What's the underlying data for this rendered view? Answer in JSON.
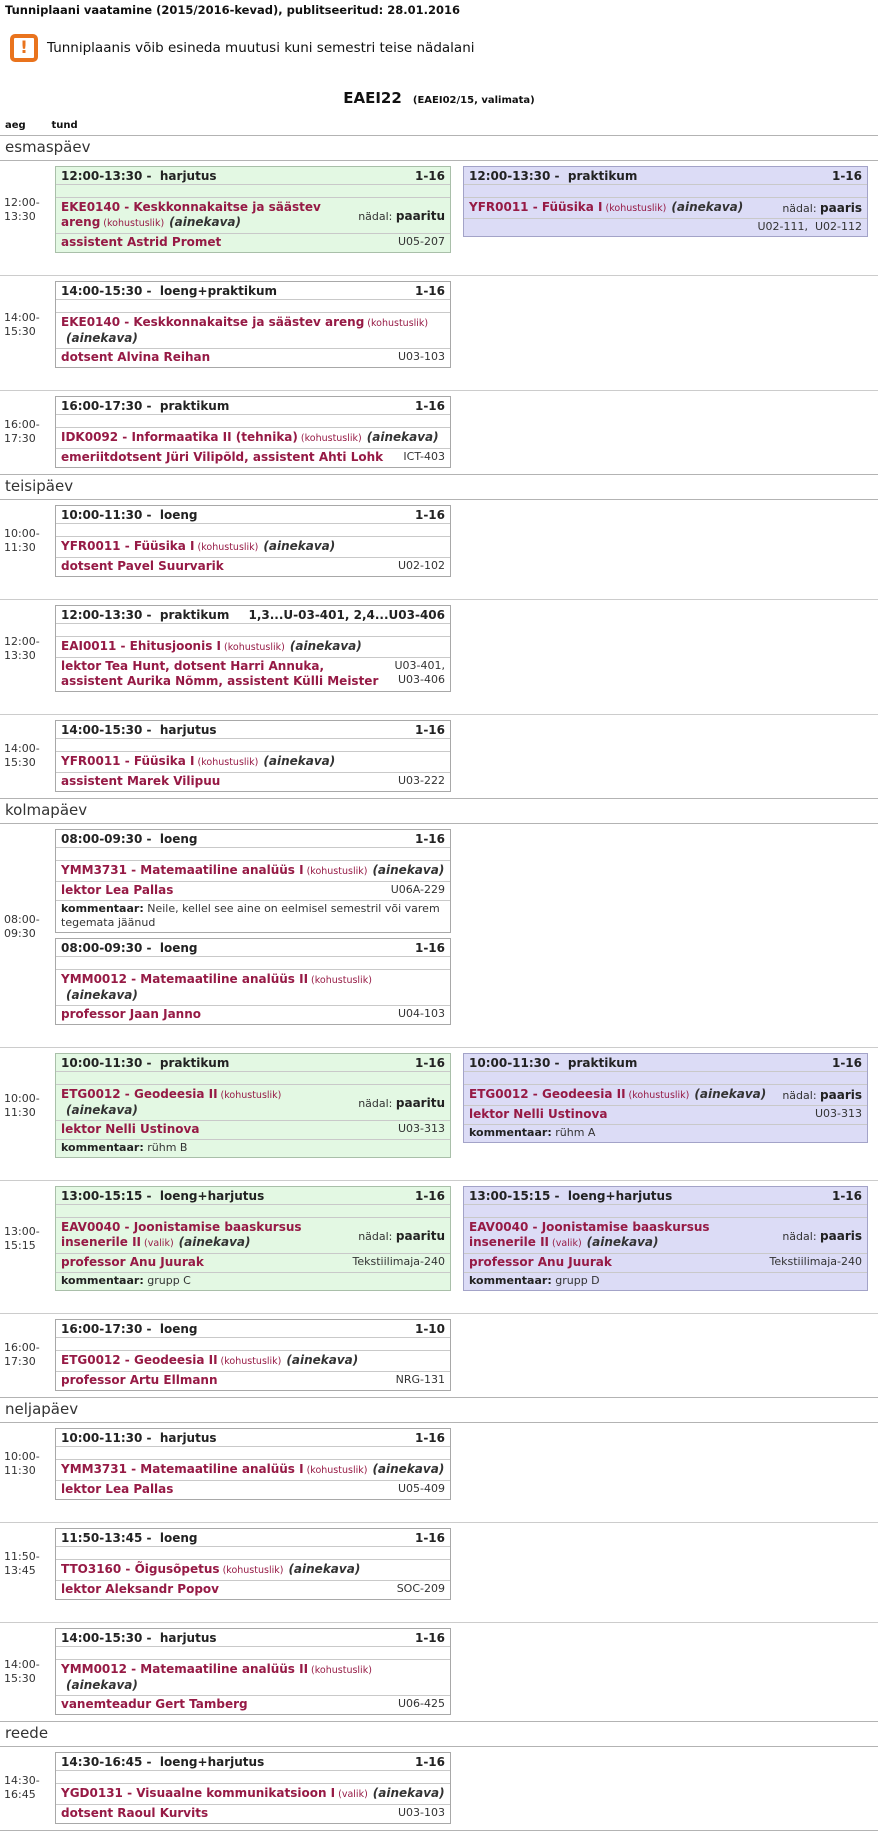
{
  "header": {
    "title": "Tunniplaani vaatamine (2015/2016-kevad), publitseeritud: 28.01.2016",
    "warning": "Tunniplaanis võib esineda muutusi kuni semestri teise nädalani",
    "group_title": "EAEI22",
    "group_subtitle": "(EAEI02/15, valimata)",
    "col_aeg": "aeg",
    "col_tund": "tund"
  },
  "labels": {
    "nadal": "nädal:",
    "kommentaar": "kommentaar:"
  },
  "colors": {
    "odd_week_bg": "#e3f8e3",
    "even_week_bg": "#dcdcf6",
    "course_maroon": "#961a45",
    "warning_orange": "#e9731d"
  },
  "days": [
    {
      "name": "esmaspäev",
      "rows": [
        {
          "time": [
            "12:00-",
            "13:30"
          ],
          "left": [
            {
              "variant": "odd",
              "title": "12:00-13:30 -  harjutus",
              "weeks": "1-16",
              "course": "EKE0140 - Keskkonnakaitse ja säästev areng",
              "requirement": "(kohustuslik)",
              "ainekava": "(ainekava)",
              "week_value": "paaritu",
              "teachers": "assistent Astrid Promet",
              "room": "U05-207"
            }
          ],
          "right": [
            {
              "variant": "even",
              "title": "12:00-13:30 -  praktikum",
              "weeks": "1-16",
              "course": "YFR0011 - Füüsika I",
              "requirement": "(kohustuslik)",
              "ainekava": "(ainekava)",
              "week_value": "paaris",
              "teachers": "",
              "room": "U02-111,  U02-112"
            }
          ]
        },
        {
          "time": [
            "14:00-",
            "15:30"
          ],
          "left": [
            {
              "variant": "plain",
              "title": "14:00-15:30 -  loeng+praktikum",
              "weeks": "1-16",
              "course": "EKE0140 - Keskkonnakaitse ja säästev areng",
              "requirement": "(kohustuslik)",
              "ainekava": "(ainekava)",
              "teachers": "dotsent Alvina Reihan",
              "room": "U03-103"
            }
          ],
          "right": []
        },
        {
          "time": [
            "16:00-",
            "17:30"
          ],
          "left": [
            {
              "variant": "plain",
              "title": "16:00-17:30 -  praktikum",
              "weeks": "1-16",
              "course": "IDK0092 - Informaatika II (tehnika)",
              "requirement": "(kohustuslik)",
              "ainekava": "(ainekava)",
              "teachers": "emeriitdotsent Jüri Vilipõld,  assistent Ahti Lohk",
              "room": "ICT-403"
            }
          ],
          "right": []
        }
      ]
    },
    {
      "name": "teisipäev",
      "rows": [
        {
          "time": [
            "10:00-",
            "11:30"
          ],
          "left": [
            {
              "variant": "plain",
              "title": "10:00-11:30 -  loeng",
              "weeks": "1-16",
              "course": "YFR0011 - Füüsika I",
              "requirement": "(kohustuslik)",
              "ainekava": "(ainekava)",
              "teachers": "dotsent Pavel Suurvarik",
              "room": "U02-102"
            }
          ],
          "right": []
        },
        {
          "time": [
            "12:00-",
            "13:30"
          ],
          "left": [
            {
              "variant": "plain",
              "title": "12:00-13:30 -  praktikum",
              "weeks": "1,3...U-03-401, 2,4...U03-406",
              "course": "EAI0011 - Ehitusjoonis I",
              "requirement": "(kohustuslik)",
              "ainekava": "(ainekava)",
              "teachers": "lektor Tea Hunt,  dotsent Harri Annuka, assistent Aurika Nõmm, assistent Külli Meister",
              "room": "U03-401, U03-406",
              "room_narrow": true
            }
          ],
          "right": []
        },
        {
          "time": [
            "14:00-",
            "15:30"
          ],
          "left": [
            {
              "variant": "plain",
              "title": "14:00-15:30 -  harjutus",
              "weeks": "1-16",
              "course": "YFR0011 - Füüsika I",
              "requirement": "(kohustuslik)",
              "ainekava": "(ainekava)",
              "teachers": "assistent Marek Vilipuu",
              "room": "U03-222"
            }
          ],
          "right": []
        }
      ]
    },
    {
      "name": "kolmapäev",
      "rows": [
        {
          "time": [
            "08:00-",
            "09:30"
          ],
          "left": [
            {
              "variant": "plain",
              "title": "08:00-09:30 -  loeng",
              "weeks": "1-16",
              "course": "YMM3731 - Matemaatiline analüüs I",
              "requirement": "(kohustuslik)",
              "ainekava": "(ainekava)",
              "teachers": "lektor Lea Pallas",
              "room": "U06A-229",
              "comment": "Neile, kellel see aine on eelmisel semestril või varem tegemata jäänud"
            },
            {
              "variant": "plain",
              "title": "08:00-09:30 -  loeng",
              "weeks": "1-16",
              "course": "YMM0012 - Matemaatiline analüüs II",
              "requirement": "(kohustuslik)",
              "ainekava": "(ainekava)",
              "teachers": "professor Jaan Janno",
              "room": "U04-103"
            }
          ],
          "right": []
        },
        {
          "time": [
            "10:00-",
            "11:30"
          ],
          "left": [
            {
              "variant": "odd",
              "title": "10:00-11:30 -  praktikum",
              "weeks": "1-16",
              "course": "ETG0012 - Geodeesia II",
              "requirement": "(kohustuslik)",
              "ainekava": "(ainekava)",
              "week_value": "paaritu",
              "teachers": "lektor Nelli Ustinova",
              "room": "U03-313",
              "comment": "rühm B"
            }
          ],
          "right": [
            {
              "variant": "even",
              "title": "10:00-11:30 -  praktikum",
              "weeks": "1-16",
              "course": "ETG0012 - Geodeesia II",
              "requirement": "(kohustuslik)",
              "ainekava": "(ainekava)",
              "week_value": "paaris",
              "teachers": "lektor Nelli Ustinova",
              "room": "U03-313",
              "comment": "rühm A"
            }
          ]
        },
        {
          "time": [
            "13:00-",
            "15:15"
          ],
          "left": [
            {
              "variant": "odd",
              "title": "13:00-15:15 -  loeng+harjutus",
              "weeks": "1-16",
              "course": "EAV0040 - Joonistamise baaskursus insenerile II",
              "requirement": "(valik)",
              "ainekava": "(ainekava)",
              "week_value": "paaritu",
              "teachers": "professor Anu Juurak",
              "room": "Tekstiilimaja-240",
              "comment": "grupp C"
            }
          ],
          "right": [
            {
              "variant": "even",
              "title": "13:00-15:15 -  loeng+harjutus",
              "weeks": "1-16",
              "course": "EAV0040 - Joonistamise baaskursus insenerile II",
              "requirement": "(valik)",
              "ainekava": "(ainekava)",
              "week_value": "paaris",
              "teachers": "professor Anu Juurak",
              "room": "Tekstiilimaja-240",
              "comment": "grupp D"
            }
          ]
        },
        {
          "time": [
            "16:00-",
            "17:30"
          ],
          "left": [
            {
              "variant": "plain",
              "title": "16:00-17:30 -  loeng",
              "weeks": "1-10",
              "course": "ETG0012 - Geodeesia II",
              "requirement": "(kohustuslik)",
              "ainekava": "(ainekava)",
              "teachers": "professor Artu Ellmann",
              "room": "NRG-131"
            }
          ],
          "right": []
        }
      ]
    },
    {
      "name": "neljapäev",
      "rows": [
        {
          "time": [
            "10:00-",
            "11:30"
          ],
          "left": [
            {
              "variant": "plain",
              "title": "10:00-11:30 -  harjutus",
              "weeks": "1-16",
              "course": "YMM3731 - Matemaatiline analüüs I",
              "requirement": "(kohustuslik)",
              "ainekava": "(ainekava)",
              "teachers": "lektor Lea Pallas",
              "room": "U05-409"
            }
          ],
          "right": []
        },
        {
          "time": [
            "11:50-",
            "13:45"
          ],
          "left": [
            {
              "variant": "plain",
              "title": "11:50-13:45 -  loeng",
              "weeks": "1-16",
              "course": "TTO3160 - Õigusõpetus",
              "requirement": "(kohustuslik)",
              "ainekava": "(ainekava)",
              "teachers": "lektor Aleksandr Popov",
              "room": "SOC-209"
            }
          ],
          "right": []
        },
        {
          "time": [
            "14:00-",
            "15:30"
          ],
          "left": [
            {
              "variant": "plain",
              "title": "14:00-15:30 -  harjutus",
              "weeks": "1-16",
              "course": "YMM0012 - Matemaatiline analüüs II",
              "requirement": "(kohustuslik)",
              "ainekava": "(ainekava)",
              "teachers": "vanemteadur Gert Tamberg",
              "room": "U06-425"
            }
          ],
          "right": []
        }
      ]
    },
    {
      "name": "reede",
      "rows": [
        {
          "time": [
            "14:30-",
            "16:45"
          ],
          "left": [
            {
              "variant": "plain",
              "title": "14:30-16:45 -  loeng+harjutus",
              "weeks": "1-16",
              "course": "YGD0131 - Visuaalne kommunikatsioon I",
              "requirement": "(valik)",
              "ainekava": "(ainekava)",
              "teachers": "dotsent Raoul Kurvits",
              "room": "U03-103"
            }
          ],
          "right": []
        }
      ]
    }
  ]
}
